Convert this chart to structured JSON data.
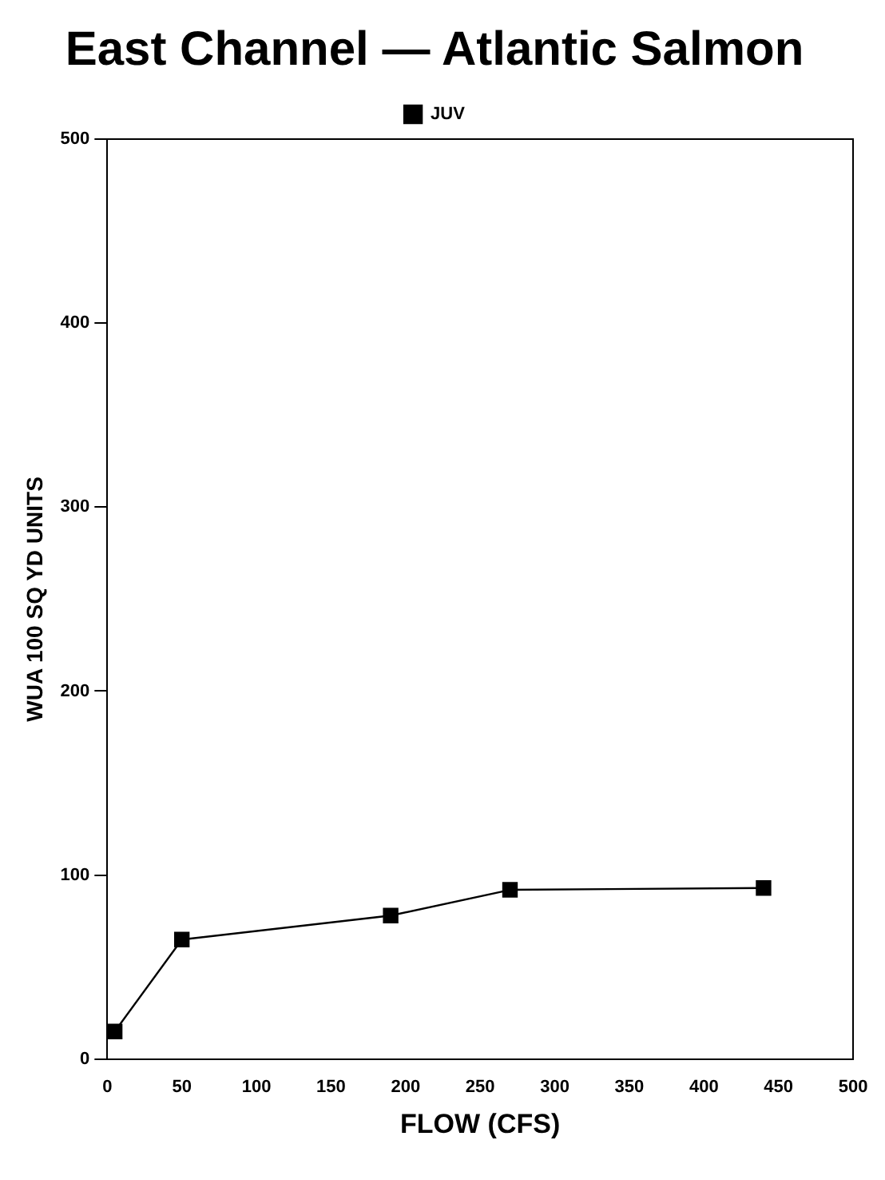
{
  "chart_data": {
    "type": "line",
    "title": "East Channel — Atlantic Salmon",
    "xlabel": "FLOW (CFS)",
    "ylabel": "WUA 100 SQ YD UNITS",
    "series": [
      {
        "name": "JUV",
        "color": "#000000",
        "x": [
          5,
          50,
          190,
          270,
          440
        ],
        "values": [
          15,
          65,
          78,
          92,
          93
        ]
      }
    ],
    "xlim": [
      0,
      500
    ],
    "xticks": [
      0,
      50,
      100,
      150,
      200,
      250,
      300,
      350,
      400,
      450,
      500
    ],
    "ylim": [
      0,
      500
    ],
    "yticks": [
      0,
      100,
      200,
      300,
      400,
      500
    ],
    "grid": false,
    "legend": "top",
    "marker": "square",
    "line_style": "solid"
  }
}
